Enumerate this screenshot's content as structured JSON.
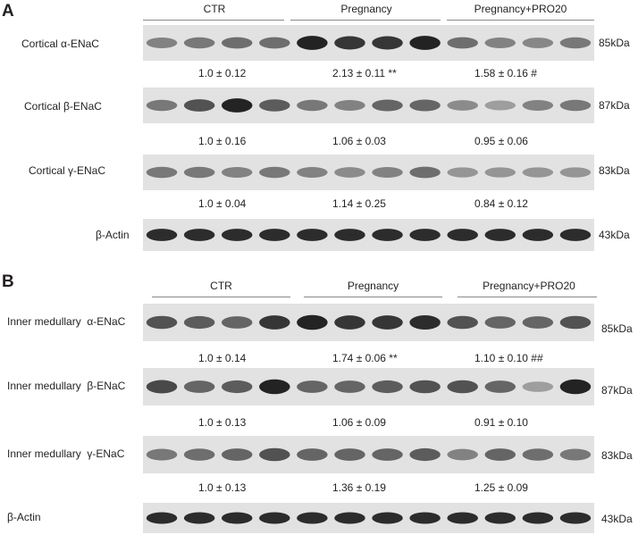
{
  "panels": [
    {
      "letter": "A",
      "groups": [
        "CTR",
        "Pregnancy",
        "Pregnancy+PRO20"
      ],
      "rows": [
        {
          "label": "Cortical α-ENaC",
          "kda": "85kDa",
          "quant": [
            "1.0 ± 0.12",
            "2.13 ± 0.11 **",
            "1.58 ± 0.16 #"
          ],
          "band_strength": [
            0.45,
            0.5,
            0.55,
            0.55,
            0.95,
            0.85,
            0.85,
            0.95,
            0.55,
            0.45,
            0.42,
            0.5
          ]
        },
        {
          "label": "Cortical β-ENaC",
          "kda": "87kDa",
          "quant": [
            "1.0 ± 0.16",
            "1.06 ± 0.03",
            "0.95 ± 0.06"
          ],
          "band_strength": [
            0.5,
            0.7,
            0.95,
            0.65,
            0.5,
            0.45,
            0.6,
            0.6,
            0.4,
            0.3,
            0.45,
            0.5
          ]
        },
        {
          "label": "Cortical γ-ENaC",
          "kda": "83kDa",
          "quant": [
            "1.0 ± 0.04",
            "1.14 ± 0.25",
            "0.84 ± 0.12"
          ],
          "band_strength": [
            0.5,
            0.5,
            0.45,
            0.5,
            0.45,
            0.4,
            0.45,
            0.55,
            0.35,
            0.35,
            0.35,
            0.35
          ]
        },
        {
          "label": "β-Actin",
          "kda": "43kDa",
          "quant": [],
          "band_strength": [
            0.9,
            0.9,
            0.9,
            0.9,
            0.9,
            0.9,
            0.9,
            0.9,
            0.9,
            0.9,
            0.9,
            0.9
          ]
        }
      ]
    },
    {
      "letter": "B",
      "groups": [
        "CTR",
        "Pregnancy",
        "Pregnancy+PRO20"
      ],
      "rows": [
        {
          "label": "Inner medullary  α-ENaC",
          "kda": "85kDa",
          "quant": [
            "1.0 ± 0.14",
            "1.74 ± 0.06 **",
            "1.10 ± 0.10 ##"
          ],
          "band_strength": [
            0.7,
            0.65,
            0.6,
            0.85,
            0.95,
            0.85,
            0.85,
            0.9,
            0.7,
            0.6,
            0.6,
            0.7
          ]
        },
        {
          "label": "Inner medullary  β-ENaC",
          "kda": "87kDa",
          "quant": [
            "1.0 ± 0.13",
            "1.06 ± 0.09",
            "0.91 ± 0.10"
          ],
          "band_strength": [
            0.75,
            0.6,
            0.65,
            0.95,
            0.6,
            0.6,
            0.65,
            0.7,
            0.7,
            0.6,
            0.3,
            0.95
          ]
        },
        {
          "label": "Inner medullary  γ-ENaC",
          "kda": "83kDa",
          "quant": [
            "1.0 ± 0.13",
            "1.36 ± 0.19",
            "1.25 ± 0.09"
          ],
          "band_strength": [
            0.5,
            0.55,
            0.6,
            0.7,
            0.6,
            0.6,
            0.6,
            0.65,
            0.45,
            0.6,
            0.55,
            0.5
          ]
        },
        {
          "label": "β-Actin",
          "kda": "43kDa",
          "quant": [],
          "band_strength": [
            0.9,
            0.9,
            0.9,
            0.9,
            0.9,
            0.9,
            0.9,
            0.9,
            0.9,
            0.9,
            0.9,
            0.9
          ]
        }
      ]
    }
  ]
}
